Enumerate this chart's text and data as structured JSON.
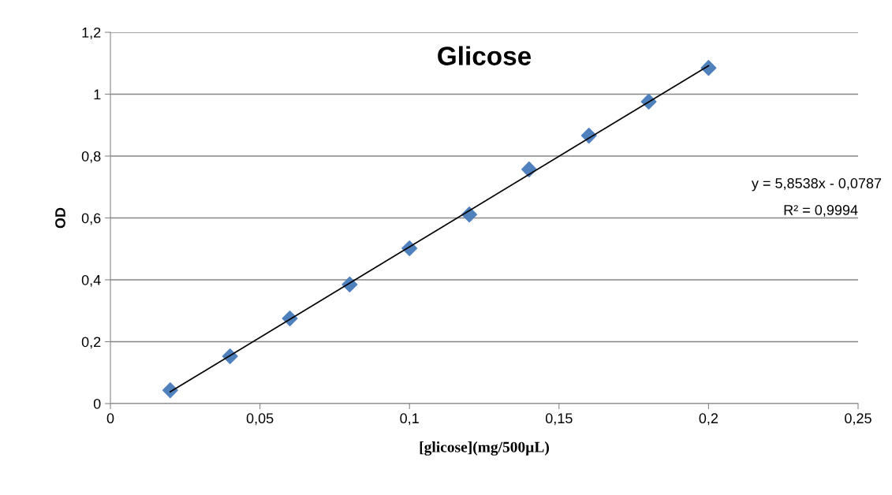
{
  "chart_data": {
    "type": "scatter",
    "title": "Glicose",
    "xlabel": "[glicose](mg/500µL)",
    "ylabel": "OD",
    "xlim": [
      0,
      0.25
    ],
    "ylim": [
      0,
      1.2
    ],
    "xticks": [
      0,
      {
        "value": 0.05,
        "label": "0,05"
      },
      {
        "value": 0.1,
        "label": "0,1"
      },
      {
        "value": 0.15,
        "label": "0,15"
      },
      {
        "value": 0.2,
        "label": "0,2"
      },
      {
        "value": 0.25,
        "label": "0,25"
      }
    ],
    "yticks": [
      0,
      {
        "value": 0.2,
        "label": "0,2"
      },
      {
        "value": 0.4,
        "label": "0,4"
      },
      {
        "value": 0.6,
        "label": "0,6"
      },
      {
        "value": 0.8,
        "label": "0,8"
      },
      1,
      {
        "value": 1.2,
        "label": "1,2"
      }
    ],
    "grid": "y",
    "legend": false,
    "series": [
      {
        "marker": "diamond",
        "color": "#4f81bd",
        "x": [
          0.02,
          0.04,
          0.06,
          0.08,
          0.1,
          0.12,
          0.14,
          0.16,
          0.18,
          0.2
        ],
        "values": [
          0.043,
          0.153,
          0.275,
          0.385,
          0.502,
          0.611,
          0.757,
          0.866,
          0.976,
          1.085
        ]
      },
      {
        "type": "line",
        "marker": "none",
        "color": "#000000",
        "x": [
          0.02,
          0.2
        ],
        "values": [
          0.038,
          1.092
        ]
      }
    ],
    "annotations": [
      "y = 5,8538x - 0,0787",
      "R² = 0,9994"
    ]
  }
}
